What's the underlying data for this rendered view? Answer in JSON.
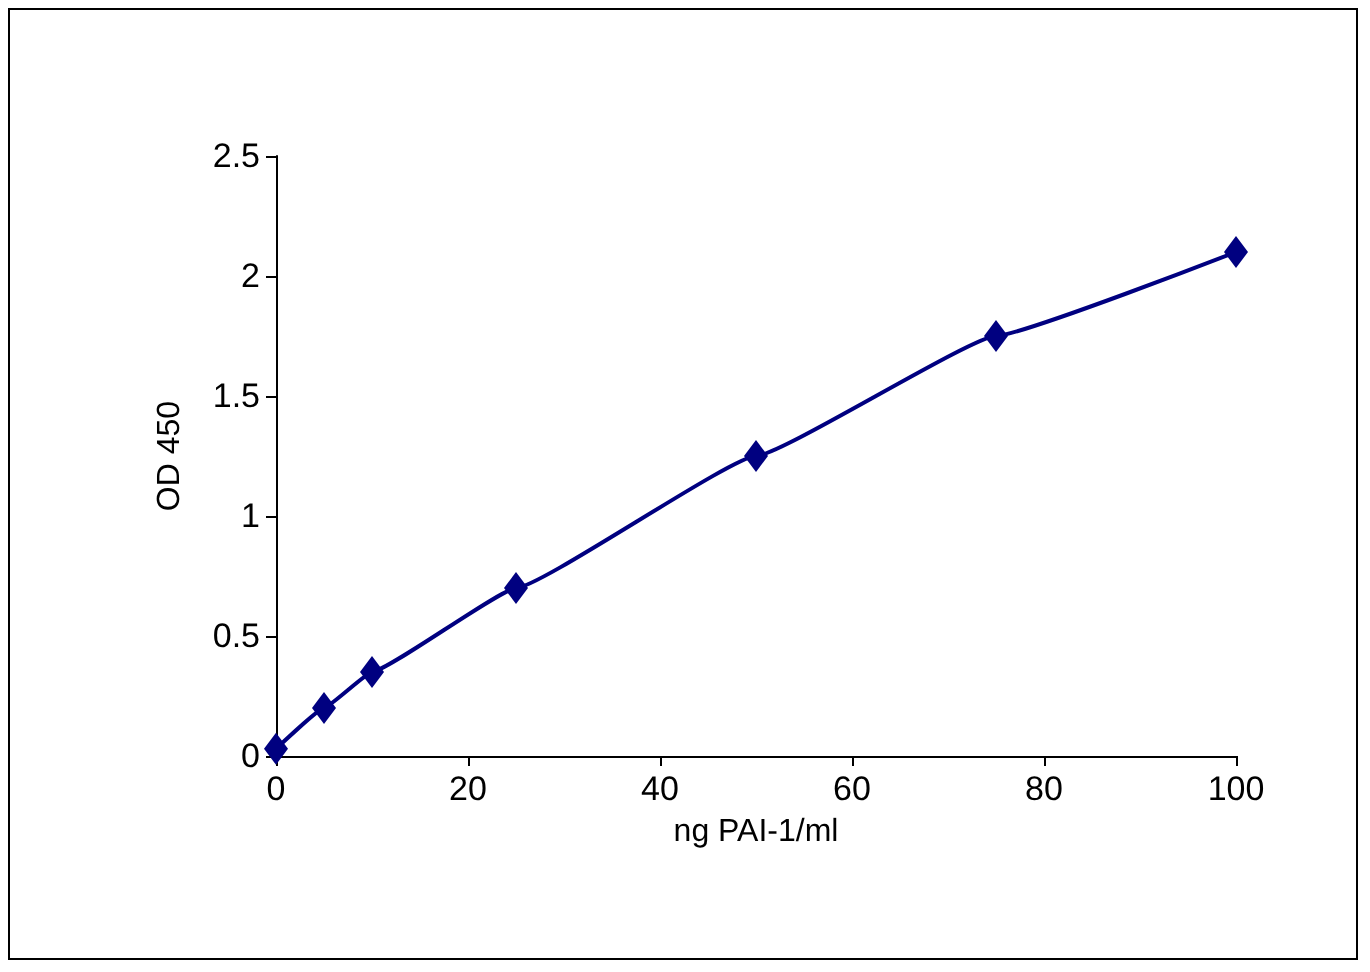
{
  "chart_data": {
    "type": "line",
    "xlabel": "ng PAI-1/ml",
    "ylabel": "OD 450",
    "x": [
      0,
      5,
      10,
      25,
      50,
      75,
      100
    ],
    "series": [
      {
        "color": "#000080",
        "values": [
          0.03,
          0.2,
          0.35,
          0.7,
          1.25,
          1.75,
          2.1
        ]
      }
    ],
    "xlim": [
      0,
      100
    ],
    "xticks": [
      0,
      20,
      40,
      60,
      80,
      100
    ],
    "ylim": [
      0,
      2.5
    ],
    "yticks": [
      0,
      0.5,
      1,
      1.5,
      2,
      2.5
    ],
    "grid": false,
    "marker": "diamond",
    "line_style": "solid"
  }
}
